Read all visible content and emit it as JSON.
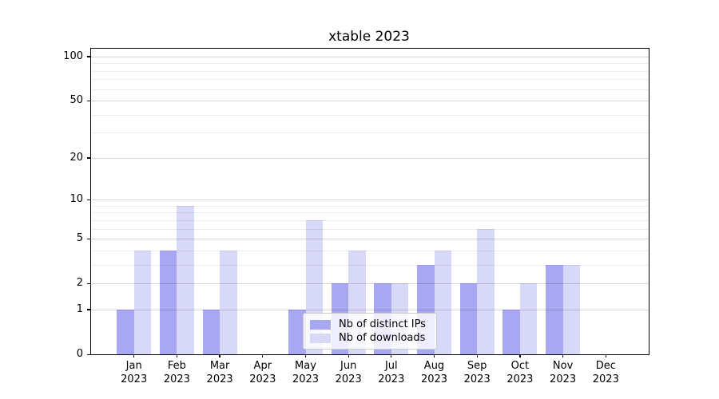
{
  "chart_data": {
    "type": "bar",
    "title": "xtable 2023",
    "categories": [
      "Jan",
      "Feb",
      "Mar",
      "Apr",
      "May",
      "Jun",
      "Jul",
      "Aug",
      "Sep",
      "Oct",
      "Nov",
      "Dec"
    ],
    "category_year": "2023",
    "series": [
      {
        "name": "Nb of distinct IPs",
        "color": "#a8a8f2",
        "values": [
          1,
          4,
          1,
          0,
          1,
          2,
          2,
          3,
          2,
          1,
          3,
          0
        ]
      },
      {
        "name": "Nb of downloads",
        "color": "#d8d8f8",
        "values": [
          4,
          9,
          4,
          0,
          7,
          4,
          2,
          4,
          6,
          2,
          3,
          0
        ]
      }
    ],
    "yscale": "log1p",
    "ylim": [
      0,
      113
    ],
    "yticks": [
      0,
      1,
      2,
      5,
      10,
      20,
      50,
      100
    ],
    "yticks_minor": [
      3,
      4,
      6,
      7,
      8,
      9,
      30,
      40,
      60,
      70,
      80,
      90
    ],
    "grid": true,
    "grid_major_color": "rgba(0,0,0,0.16)",
    "grid_minor_color": "rgba(0,0,0,0.07)",
    "axis_color": "#000000",
    "background_color": "#ffffff",
    "legend_position": "inside-bottom-center"
  }
}
